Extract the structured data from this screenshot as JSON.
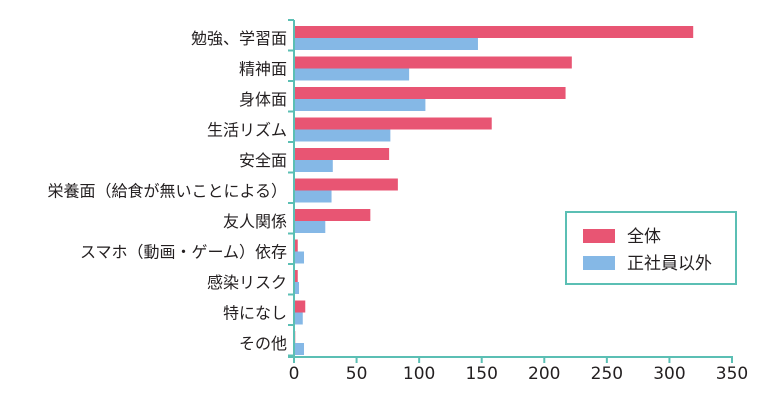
{
  "chart_data": {
    "type": "bar",
    "orientation": "horizontal",
    "categories": [
      "勉強、学習面",
      "精神面",
      "身体面",
      "生活リズム",
      "安全面",
      "栄養面（給食が無いことによる）",
      "友人関係",
      "スマホ（動画・ゲーム）依存",
      "感染リスク",
      "特になし",
      "その他"
    ],
    "series": [
      {
        "name": "全体",
        "color": "#e85573",
        "values": [
          319,
          222,
          217,
          158,
          76,
          83,
          61,
          3,
          3,
          9,
          1
        ]
      },
      {
        "name": "正社員以外",
        "color": "#85b8e6",
        "values": [
          147,
          92,
          105,
          77,
          31,
          30,
          25,
          8,
          4,
          7,
          8
        ]
      }
    ],
    "xlim": [
      0,
      350
    ],
    "xticks": [
      "0",
      "50",
      "100",
      "150",
      "200",
      "250",
      "300",
      "350"
    ],
    "axis_color": "#5bbfb4",
    "legend_position": "right",
    "grid": false
  }
}
